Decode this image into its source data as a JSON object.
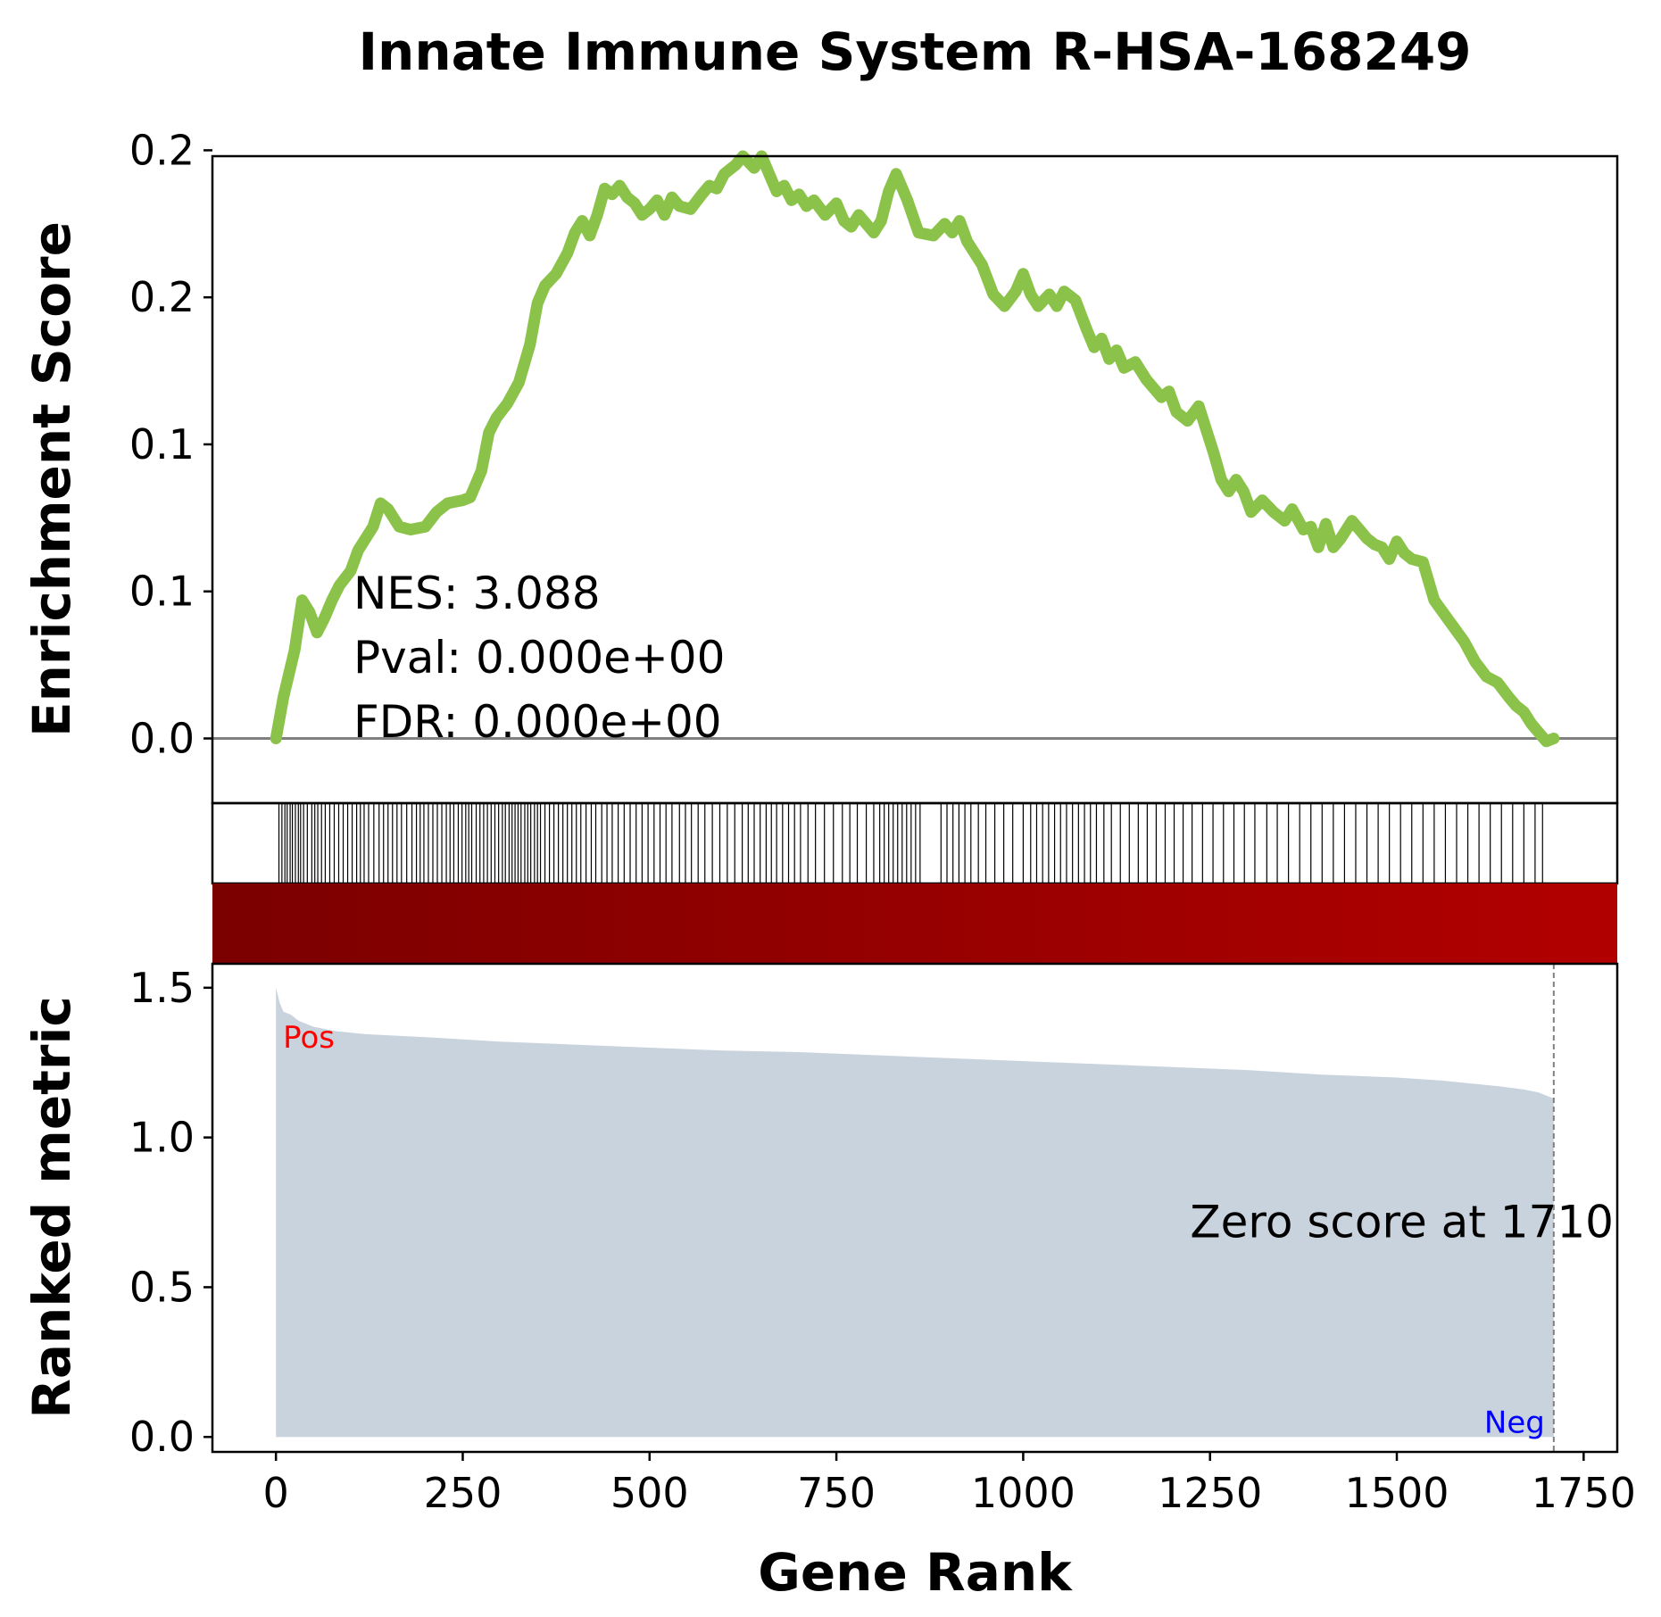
{
  "chart_data": {
    "type": "line",
    "title": "Innate Immune System R-HSA-168249",
    "xlabel": "Gene Rank",
    "xlim": [
      -85,
      1795
    ],
    "x_ticks": [
      "0",
      "250",
      "500",
      "750",
      "1000",
      "1250",
      "1500",
      "1750"
    ],
    "x_tick_values": [
      0,
      250,
      500,
      750,
      1000,
      1250,
      1500,
      1750
    ],
    "enrichment": {
      "ylabel": "Enrichment Score",
      "ylim": [
        -0.022,
        0.198
      ],
      "y_tick_labels": [
        "0.0",
        "0.1",
        "0.1",
        "0.2",
        "0.2"
      ],
      "y_tick_values": [
        0.0,
        0.05,
        0.1,
        0.15,
        0.2
      ],
      "line_color": "#8bc34a",
      "series": [
        {
          "x": [
            0,
            10,
            25,
            35,
            45,
            55,
            65,
            75,
            85,
            100,
            110,
            130,
            140,
            150,
            165,
            180,
            200,
            215,
            230,
            250,
            260,
            275,
            285,
            295,
            310,
            325,
            340,
            350,
            360,
            375,
            390,
            400,
            410,
            420,
            430,
            440,
            450,
            460,
            470,
            480,
            490,
            500,
            510,
            520,
            530,
            540,
            555,
            570,
            580,
            590,
            600,
            615,
            625,
            640,
            650,
            660,
            670,
            680,
            690,
            700,
            710,
            720,
            735,
            750,
            760,
            770,
            780,
            790,
            800,
            810,
            820,
            830,
            845,
            860,
            880,
            895,
            905,
            915,
            925,
            945,
            960,
            975,
            990,
            1000,
            1010,
            1020,
            1035,
            1045,
            1055,
            1070,
            1085,
            1095,
            1105,
            1115,
            1125,
            1135,
            1150,
            1165,
            1175,
            1185,
            1195,
            1205,
            1220,
            1235,
            1245,
            1255,
            1265,
            1275,
            1285,
            1295,
            1305,
            1320,
            1335,
            1350,
            1360,
            1375,
            1385,
            1395,
            1405,
            1415,
            1425,
            1440,
            1450,
            1460,
            1470,
            1480,
            1490,
            1500,
            1510,
            1520,
            1535,
            1550,
            1570,
            1590,
            1605,
            1620,
            1635,
            1650,
            1660,
            1670,
            1680,
            1690,
            1700,
            1710
          ],
          "y": [
            0.0,
            0.014,
            0.03,
            0.047,
            0.043,
            0.036,
            0.041,
            0.047,
            0.052,
            0.057,
            0.064,
            0.072,
            0.08,
            0.078,
            0.072,
            0.071,
            0.072,
            0.077,
            0.08,
            0.081,
            0.082,
            0.091,
            0.104,
            0.109,
            0.114,
            0.121,
            0.134,
            0.148,
            0.154,
            0.158,
            0.165,
            0.172,
            0.176,
            0.171,
            0.178,
            0.187,
            0.185,
            0.188,
            0.184,
            0.182,
            0.178,
            0.18,
            0.183,
            0.178,
            0.184,
            0.181,
            0.18,
            0.185,
            0.188,
            0.187,
            0.192,
            0.195,
            0.198,
            0.194,
            0.198,
            0.192,
            0.186,
            0.188,
            0.183,
            0.185,
            0.181,
            0.183,
            0.178,
            0.182,
            0.176,
            0.174,
            0.178,
            0.175,
            0.172,
            0.176,
            0.186,
            0.192,
            0.183,
            0.172,
            0.171,
            0.175,
            0.172,
            0.176,
            0.169,
            0.161,
            0.151,
            0.147,
            0.152,
            0.158,
            0.151,
            0.147,
            0.151,
            0.147,
            0.152,
            0.149,
            0.139,
            0.133,
            0.136,
            0.129,
            0.132,
            0.126,
            0.128,
            0.122,
            0.119,
            0.116,
            0.118,
            0.111,
            0.108,
            0.113,
            0.105,
            0.097,
            0.088,
            0.084,
            0.088,
            0.084,
            0.077,
            0.081,
            0.077,
            0.074,
            0.078,
            0.071,
            0.072,
            0.065,
            0.073,
            0.065,
            0.068,
            0.074,
            0.071,
            0.068,
            0.066,
            0.065,
            0.061,
            0.067,
            0.063,
            0.061,
            0.06,
            0.047,
            0.04,
            0.033,
            0.026,
            0.021,
            0.019,
            0.014,
            0.011,
            0.009,
            0.005,
            0.002,
            -0.001,
            0.0
          ]
        }
      ],
      "zero_line_color": "#808080",
      "stats": {
        "nes": "NES: 3.088",
        "pval": "Pval: 0.000e+00",
        "fdr": "FDR: 0.000e+00"
      }
    },
    "hits": {
      "color": "#000000",
      "positions": [
        4,
        8,
        12,
        15,
        19,
        22,
        26,
        30,
        33,
        37,
        42,
        48,
        52,
        56,
        61,
        66,
        72,
        78,
        84,
        90,
        96,
        102,
        108,
        113,
        118,
        124,
        131,
        138,
        144,
        150,
        156,
        162,
        168,
        175,
        182,
        188,
        193,
        198,
        204,
        210,
        216,
        222,
        228,
        233,
        238,
        244,
        249,
        254,
        258,
        262,
        268,
        273,
        278,
        283,
        288,
        293,
        298,
        303,
        307,
        312,
        316,
        320,
        324,
        328,
        333,
        337,
        341,
        346,
        350,
        354,
        360,
        366,
        372,
        378,
        384,
        390,
        396,
        402,
        408,
        415,
        422,
        428,
        436,
        443,
        450,
        458,
        466,
        474,
        482,
        490,
        498,
        506,
        514,
        522,
        530,
        540,
        548,
        556,
        565,
        574,
        584,
        594,
        604,
        614,
        624,
        632,
        640,
        648,
        656,
        663,
        670,
        678,
        686,
        694,
        702,
        712,
        722,
        734,
        746,
        758,
        768,
        778,
        790,
        800,
        808,
        814,
        820,
        826,
        832,
        838,
        844,
        850,
        856,
        862,
        890,
        898,
        906,
        914,
        922,
        930,
        940,
        950,
        962,
        974,
        986,
        1000,
        1010,
        1018,
        1026,
        1034,
        1042,
        1050,
        1058,
        1066,
        1074,
        1082,
        1090,
        1098,
        1108,
        1118,
        1130,
        1142,
        1154,
        1166,
        1178,
        1190,
        1202,
        1214,
        1226,
        1240,
        1254,
        1268,
        1282,
        1296,
        1310,
        1326,
        1340,
        1355,
        1370,
        1385,
        1400,
        1415,
        1430,
        1445,
        1460,
        1475,
        1490,
        1505,
        1520,
        1535,
        1550,
        1565,
        1580,
        1595,
        1610,
        1625,
        1640,
        1655,
        1670,
        1685,
        1695
      ]
    },
    "gradient_bar": {
      "color_start": "#7b0000",
      "color_end": "#b20000"
    },
    "ranked_metric": {
      "ylabel": "Ranked metric",
      "ylim": [
        -0.05,
        1.58
      ],
      "y_ticks": [
        "0.0",
        "0.5",
        "1.0",
        "1.5"
      ],
      "y_tick_values": [
        0.0,
        0.5,
        1.0,
        1.5
      ],
      "fill_color": "#c8d3dd",
      "x": [
        0,
        5,
        10,
        20,
        30,
        50,
        80,
        120,
        200,
        300,
        400,
        500,
        600,
        700,
        800,
        900,
        1000,
        1100,
        1200,
        1300,
        1400,
        1500,
        1560,
        1600,
        1640,
        1670,
        1690,
        1700,
        1710
      ],
      "y": [
        1.5,
        1.45,
        1.42,
        1.41,
        1.39,
        1.37,
        1.355,
        1.345,
        1.335,
        1.32,
        1.31,
        1.3,
        1.29,
        1.285,
        1.275,
        1.265,
        1.255,
        1.245,
        1.235,
        1.225,
        1.21,
        1.2,
        1.19,
        1.18,
        1.17,
        1.16,
        1.15,
        1.14,
        1.13
      ],
      "pos_label": "Pos",
      "pos_color": "#ff0000",
      "neg_label": "Neg",
      "neg_color": "#0000ff",
      "zero_score_label": "Zero score at 1710",
      "zero_score_x": 1710,
      "zero_line_color": "#808080"
    }
  }
}
